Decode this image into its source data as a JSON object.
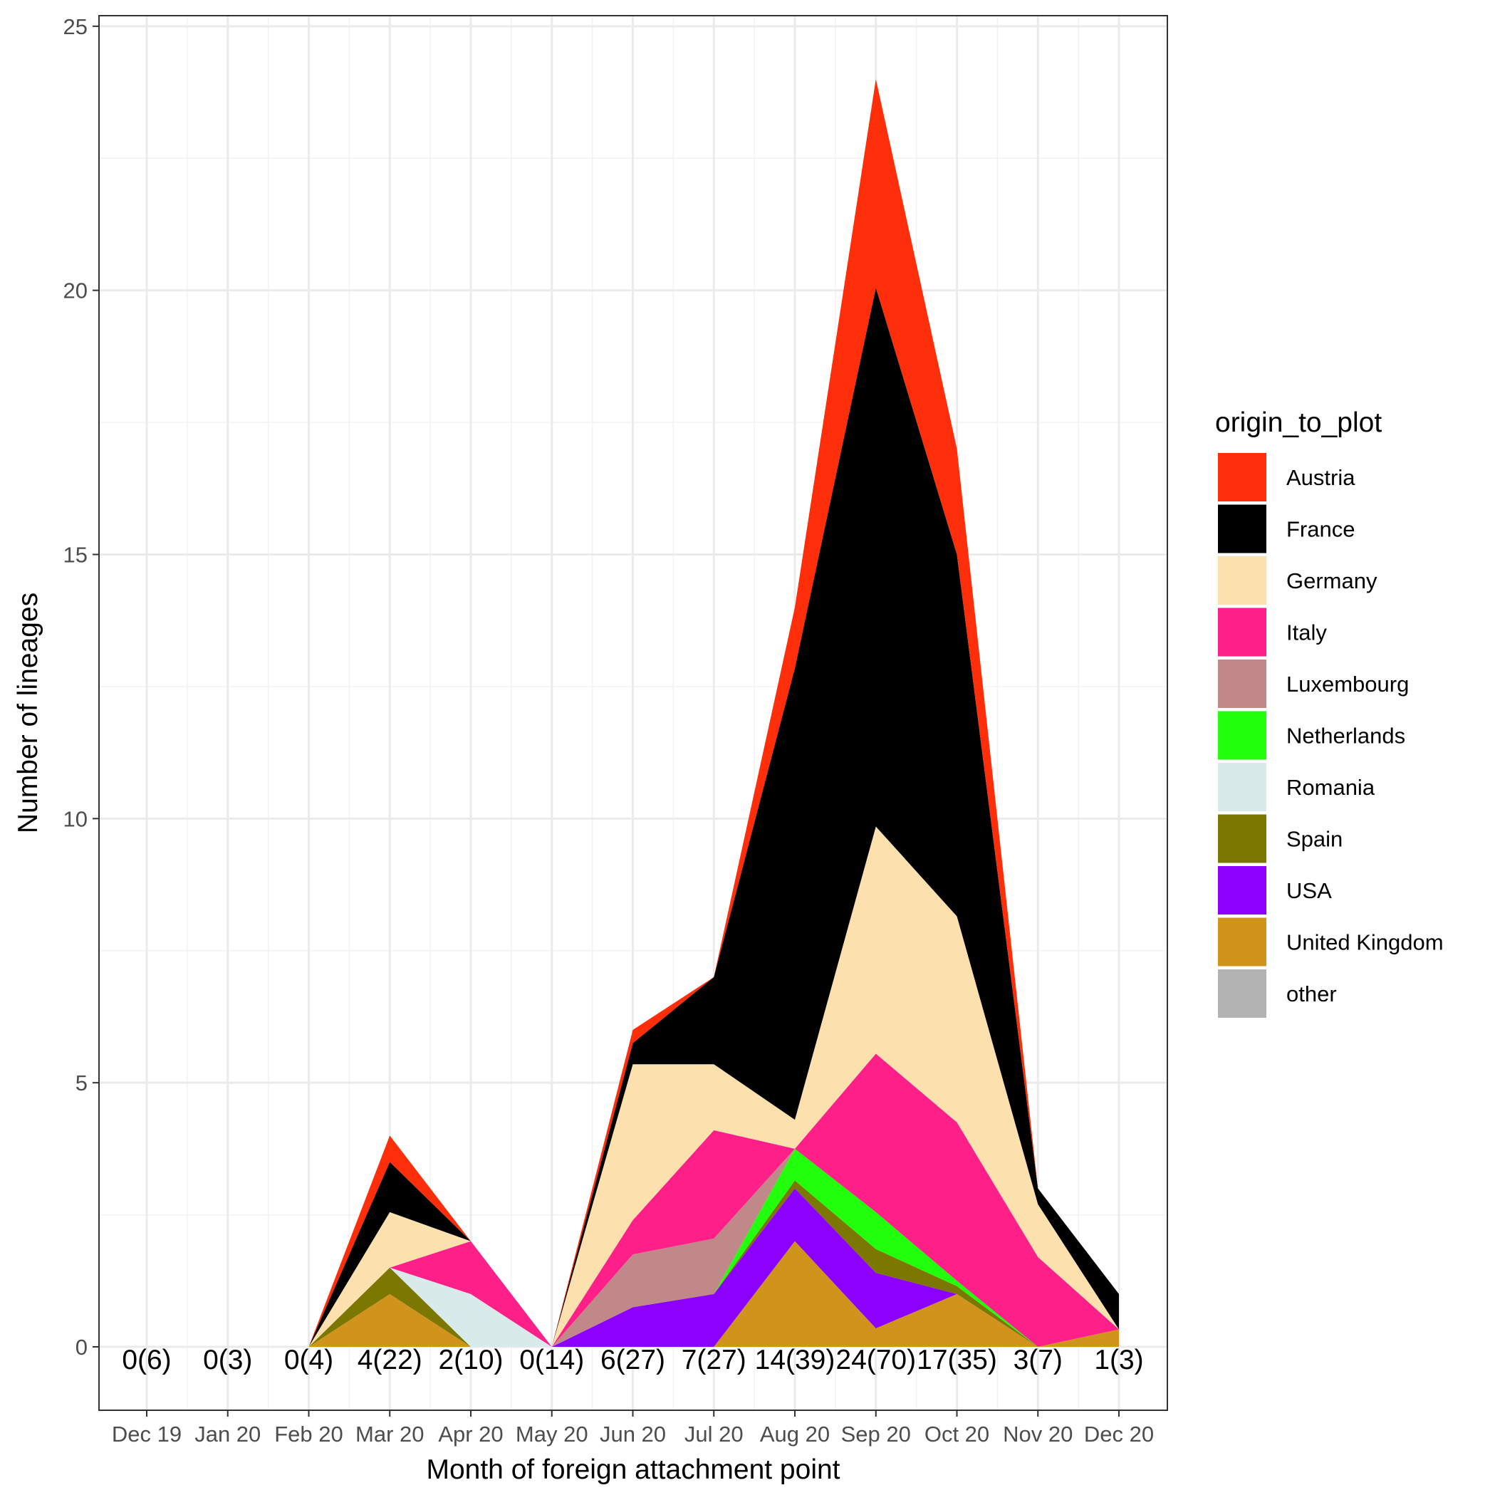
{
  "chart_data": {
    "type": "area",
    "stacked": true,
    "xlabel": "Month of foreign attachment point",
    "ylabel": "Number of lineages",
    "ylim": [
      -1.2,
      25.2
    ],
    "yticks": [
      0,
      5,
      10,
      15,
      20,
      25
    ],
    "grid": true,
    "legend_position": "right",
    "legend_title": "origin_to_plot",
    "categories": [
      "Dec 19",
      "Jan 20",
      "Feb 20",
      "Mar 20",
      "Apr 20",
      "May 20",
      "Jun 20",
      "Jul 20",
      "Aug 20",
      "Sep 20",
      "Oct 20",
      "Nov 20",
      "Dec 20"
    ],
    "annotations": [
      "0(6)",
      "0(3)",
      "0(4)",
      "4(22)",
      "2(10)",
      "0(14)",
      "6(27)",
      "7(27)",
      "14(39)",
      "24(70)",
      "17(35)",
      "3(7)",
      "1(3)"
    ],
    "series": [
      {
        "name": "United Kingdom",
        "color": "#D0941C",
        "values": [
          0,
          0,
          0,
          1.0,
          0,
          0,
          0,
          0,
          2.0,
          0.35,
          1.0,
          0,
          0.33
        ]
      },
      {
        "name": "USA",
        "color": "#8B00FF",
        "values": [
          0,
          0,
          0,
          0,
          0,
          0,
          0.75,
          1.0,
          1.0,
          1.05,
          0,
          0,
          0
        ]
      },
      {
        "name": "Spain",
        "color": "#7B7700",
        "values": [
          0,
          0,
          0,
          0.5,
          0,
          0,
          0,
          0,
          0.15,
          0.45,
          0.15,
          0,
          0
        ]
      },
      {
        "name": "Romania",
        "color": "#D8EAEA",
        "values": [
          0,
          0,
          0,
          0,
          1.0,
          0,
          0,
          0,
          0,
          0,
          0,
          0,
          0
        ]
      },
      {
        "name": "Netherlands",
        "color": "#22FF0D",
        "values": [
          0,
          0,
          0,
          0,
          0,
          0,
          0,
          0,
          0.6,
          0.7,
          0.1,
          0,
          0
        ]
      },
      {
        "name": "Luxembourg",
        "color": "#C08888",
        "values": [
          0,
          0,
          0,
          0,
          0,
          0,
          1.0,
          1.05,
          0,
          0,
          0,
          0,
          0
        ]
      },
      {
        "name": "Italy",
        "color": "#FF1F88",
        "values": [
          0,
          0,
          0,
          0,
          1.0,
          0,
          0.65,
          2.05,
          0,
          3.0,
          3.0,
          1.7,
          0
        ]
      },
      {
        "name": "Germany",
        "color": "#FCE1AE",
        "values": [
          0,
          0,
          0,
          1.05,
          0,
          0,
          2.95,
          1.25,
          0.55,
          4.3,
          3.9,
          1.0,
          0
        ]
      },
      {
        "name": "France",
        "color": "#000000",
        "values": [
          0,
          0,
          0,
          0.95,
          0,
          0,
          0.4,
          1.65,
          8.55,
          10.2,
          6.85,
          0.3,
          0.67
        ]
      },
      {
        "name": "Austria",
        "color": "#FF2E0A",
        "values": [
          0,
          0,
          0,
          0.5,
          0,
          0,
          0.25,
          0,
          1.15,
          3.95,
          2.0,
          0,
          0
        ]
      },
      {
        "name": "other",
        "color": "#B3B3B3",
        "values": [
          0,
          0,
          0,
          0,
          0,
          0,
          0,
          0,
          0,
          0,
          0,
          0,
          0
        ]
      }
    ]
  },
  "legend_order": [
    "Austria",
    "France",
    "Germany",
    "Italy",
    "Luxembourg",
    "Netherlands",
    "Romania",
    "Spain",
    "USA",
    "United Kingdom",
    "other"
  ]
}
